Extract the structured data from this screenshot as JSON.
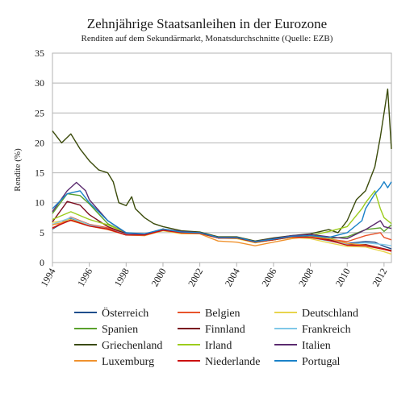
{
  "chart_data": {
    "type": "line",
    "title": "Zehnjährige Staatsanleihen in der Eurozone",
    "subtitle": "Renditen auf dem Sekundärmarkt, Monatsdurchschnitte (Quelle: EZB)",
    "xlabel": "",
    "ylabel": "Rendite (%)",
    "xlim": [
      1994,
      2012.4
    ],
    "ylim": [
      0,
      35
    ],
    "y_ticks": [
      0,
      5,
      10,
      15,
      20,
      25,
      30,
      35
    ],
    "x_ticks": [
      1994,
      1996,
      1998,
      2000,
      2002,
      2004,
      2006,
      2008,
      2010,
      2012
    ],
    "grid": "horizontal",
    "legend_position": "bottom",
    "series": [
      {
        "name": "Österreich",
        "color": "#1f4e8c",
        "points": [
          [
            1994,
            5.6
          ],
          [
            1995,
            7.4
          ],
          [
            1996,
            6.3
          ],
          [
            1997,
            5.7
          ],
          [
            1998,
            4.8
          ],
          [
            1999,
            4.6
          ],
          [
            2000,
            5.5
          ],
          [
            2001,
            5.1
          ],
          [
            2002,
            5.0
          ],
          [
            2003,
            4.2
          ],
          [
            2004,
            4.2
          ],
          [
            2005,
            3.4
          ],
          [
            2006,
            3.8
          ],
          [
            2007,
            4.3
          ],
          [
            2008,
            4.3
          ],
          [
            2009,
            3.9
          ],
          [
            2010,
            3.2
          ],
          [
            2011,
            3.5
          ],
          [
            2011.5,
            3.4
          ],
          [
            2012,
            2.7
          ],
          [
            2012.4,
            2.3
          ]
        ]
      },
      {
        "name": "Belgien",
        "color": "#e8542b",
        "points": [
          [
            1994,
            5.7
          ],
          [
            1995,
            7.6
          ],
          [
            1996,
            6.4
          ],
          [
            1997,
            5.8
          ],
          [
            1998,
            4.8
          ],
          [
            1999,
            4.7
          ],
          [
            2000,
            5.6
          ],
          [
            2001,
            5.1
          ],
          [
            2002,
            5.0
          ],
          [
            2003,
            4.2
          ],
          [
            2004,
            4.2
          ],
          [
            2005,
            3.4
          ],
          [
            2006,
            3.8
          ],
          [
            2007,
            4.3
          ],
          [
            2008,
            4.4
          ],
          [
            2009,
            3.9
          ],
          [
            2010,
            3.5
          ],
          [
            2011,
            4.5
          ],
          [
            2011.8,
            5.0
          ],
          [
            2012,
            4.2
          ],
          [
            2012.4,
            3.8
          ]
        ]
      },
      {
        "name": "Deutschland",
        "color": "#e8d44d",
        "points": [
          [
            1994,
            6.7
          ],
          [
            1995,
            7.2
          ],
          [
            1996,
            6.2
          ],
          [
            1997,
            5.6
          ],
          [
            1998,
            4.6
          ],
          [
            1999,
            4.5
          ],
          [
            2000,
            5.3
          ],
          [
            2001,
            4.8
          ],
          [
            2002,
            4.8
          ],
          [
            2003,
            4.1
          ],
          [
            2004,
            4.0
          ],
          [
            2005,
            3.3
          ],
          [
            2006,
            3.8
          ],
          [
            2007,
            4.2
          ],
          [
            2008,
            4.0
          ],
          [
            2009,
            3.3
          ],
          [
            2010,
            2.7
          ],
          [
            2011,
            2.6
          ],
          [
            2012,
            1.8
          ],
          [
            2012.4,
            1.4
          ]
        ]
      },
      {
        "name": "Spanien",
        "color": "#5aa02c",
        "points": [
          [
            1994,
            8.2
          ],
          [
            1994.8,
            11.5
          ],
          [
            1995.5,
            11.2
          ],
          [
            1996,
            9.8
          ],
          [
            1997,
            6.5
          ],
          [
            1998,
            4.9
          ],
          [
            1999,
            4.7
          ],
          [
            2000,
            5.6
          ],
          [
            2001,
            5.1
          ],
          [
            2002,
            5.0
          ],
          [
            2003,
            4.1
          ],
          [
            2004,
            4.1
          ],
          [
            2005,
            3.4
          ],
          [
            2006,
            3.8
          ],
          [
            2007,
            4.3
          ],
          [
            2008,
            4.4
          ],
          [
            2009,
            4.0
          ],
          [
            2010,
            4.3
          ],
          [
            2011,
            5.5
          ],
          [
            2011.8,
            5.8
          ],
          [
            2012,
            5.2
          ],
          [
            2012.4,
            6.3
          ]
        ]
      },
      {
        "name": "Finnland",
        "color": "#7a0c1e",
        "points": [
          [
            1994,
            6.8
          ],
          [
            1994.8,
            10.2
          ],
          [
            1995.5,
            9.6
          ],
          [
            1996,
            8.0
          ],
          [
            1997,
            6.0
          ],
          [
            1998,
            4.8
          ],
          [
            1999,
            4.7
          ],
          [
            2000,
            5.5
          ],
          [
            2001,
            5.1
          ],
          [
            2002,
            5.0
          ],
          [
            2003,
            4.1
          ],
          [
            2004,
            4.1
          ],
          [
            2005,
            3.4
          ],
          [
            2006,
            3.8
          ],
          [
            2007,
            4.3
          ],
          [
            2008,
            4.3
          ],
          [
            2009,
            3.8
          ],
          [
            2010,
            3.0
          ],
          [
            2011,
            3.0
          ],
          [
            2012,
            2.3
          ],
          [
            2012.4,
            2.0
          ]
        ]
      },
      {
        "name": "Frankreich",
        "color": "#7fc8e8",
        "points": [
          [
            1994,
            6.4
          ],
          [
            1995,
            7.5
          ],
          [
            1996,
            6.3
          ],
          [
            1997,
            5.6
          ],
          [
            1998,
            4.7
          ],
          [
            1999,
            4.6
          ],
          [
            2000,
            5.4
          ],
          [
            2001,
            5.0
          ],
          [
            2002,
            4.9
          ],
          [
            2003,
            4.1
          ],
          [
            2004,
            4.1
          ],
          [
            2005,
            3.4
          ],
          [
            2006,
            3.8
          ],
          [
            2007,
            4.3
          ],
          [
            2008,
            4.2
          ],
          [
            2009,
            3.6
          ],
          [
            2010,
            3.1
          ],
          [
            2011,
            3.3
          ],
          [
            2012,
            3.0
          ],
          [
            2012.4,
            2.8
          ]
        ]
      },
      {
        "name": "Griechenland",
        "color": "#3a4a0a",
        "points": [
          [
            1994,
            22.0
          ],
          [
            1994.5,
            20.0
          ],
          [
            1995,
            21.5
          ],
          [
            1995.5,
            19.0
          ],
          [
            1996,
            17.0
          ],
          [
            1996.5,
            15.5
          ],
          [
            1997,
            15.0
          ],
          [
            1997.3,
            13.5
          ],
          [
            1997.6,
            10.0
          ],
          [
            1998,
            9.5
          ],
          [
            1998.3,
            11.0
          ],
          [
            1998.5,
            9.0
          ],
          [
            1999,
            7.5
          ],
          [
            1999.5,
            6.5
          ],
          [
            2000,
            6.0
          ],
          [
            2001,
            5.3
          ],
          [
            2002,
            5.1
          ],
          [
            2003,
            4.3
          ],
          [
            2004,
            4.3
          ],
          [
            2005,
            3.6
          ],
          [
            2006,
            4.1
          ],
          [
            2007,
            4.5
          ],
          [
            2008,
            4.8
          ],
          [
            2009,
            5.5
          ],
          [
            2009.5,
            5.0
          ],
          [
            2010,
            7.0
          ],
          [
            2010.5,
            10.5
          ],
          [
            2011,
            12.0
          ],
          [
            2011.5,
            16.0
          ],
          [
            2011.8,
            21.0
          ],
          [
            2012,
            25.0
          ],
          [
            2012.2,
            29.0
          ],
          [
            2012.4,
            19.0
          ]
        ]
      },
      {
        "name": "Irland",
        "color": "#9ccc1c",
        "points": [
          [
            1994,
            7.2
          ],
          [
            1995,
            8.5
          ],
          [
            1996,
            7.2
          ],
          [
            1997,
            6.3
          ],
          [
            1998,
            5.0
          ],
          [
            1999,
            4.7
          ],
          [
            2000,
            5.5
          ],
          [
            2001,
            5.0
          ],
          [
            2002,
            5.0
          ],
          [
            2003,
            4.1
          ],
          [
            2004,
            4.1
          ],
          [
            2005,
            3.4
          ],
          [
            2006,
            3.8
          ],
          [
            2007,
            4.3
          ],
          [
            2008,
            4.5
          ],
          [
            2009,
            5.2
          ],
          [
            2010,
            6.0
          ],
          [
            2010.8,
            9.0
          ],
          [
            2011,
            10.0
          ],
          [
            2011.5,
            12.0
          ],
          [
            2011.8,
            9.0
          ],
          [
            2012,
            7.5
          ],
          [
            2012.4,
            6.5
          ]
        ]
      },
      {
        "name": "Italien",
        "color": "#5a2a6e",
        "points": [
          [
            1994,
            8.5
          ],
          [
            1994.8,
            12.0
          ],
          [
            1995.3,
            13.4
          ],
          [
            1995.8,
            12.0
          ],
          [
            1996,
            10.5
          ],
          [
            1997,
            7.0
          ],
          [
            1998,
            4.9
          ],
          [
            1999,
            4.7
          ],
          [
            2000,
            5.6
          ],
          [
            2001,
            5.2
          ],
          [
            2002,
            5.0
          ],
          [
            2003,
            4.2
          ],
          [
            2004,
            4.2
          ],
          [
            2005,
            3.5
          ],
          [
            2006,
            4.0
          ],
          [
            2007,
            4.5
          ],
          [
            2008,
            4.7
          ],
          [
            2009,
            4.3
          ],
          [
            2010,
            4.0
          ],
          [
            2011,
            5.5
          ],
          [
            2011.8,
            7.0
          ],
          [
            2012,
            6.0
          ],
          [
            2012.4,
            5.7
          ]
        ]
      },
      {
        "name": "Luxemburg",
        "color": "#f0922e",
        "points": [
          [
            1994,
            6.3
          ],
          [
            1995,
            7.0
          ],
          [
            1996,
            6.1
          ],
          [
            1997,
            5.5
          ],
          [
            1998,
            4.6
          ],
          [
            1999,
            4.5
          ],
          [
            2000,
            5.4
          ],
          [
            2001,
            4.9
          ],
          [
            2002,
            4.8
          ],
          [
            2003,
            3.6
          ],
          [
            2004,
            3.4
          ],
          [
            2005,
            2.8
          ],
          [
            2006,
            3.4
          ],
          [
            2007,
            4.0
          ],
          [
            2008,
            4.3
          ],
          [
            2009,
            4.0
          ],
          [
            2010,
            3.2
          ],
          [
            2011,
            2.9
          ],
          [
            2012,
            2.2
          ],
          [
            2012.4,
            1.9
          ]
        ]
      },
      {
        "name": "Niederlande",
        "color": "#cc1010",
        "points": [
          [
            1994,
            5.8
          ],
          [
            1995,
            7.1
          ],
          [
            1996,
            6.1
          ],
          [
            1997,
            5.6
          ],
          [
            1998,
            4.6
          ],
          [
            1999,
            4.6
          ],
          [
            2000,
            5.4
          ],
          [
            2001,
            5.0
          ],
          [
            2002,
            4.9
          ],
          [
            2003,
            4.1
          ],
          [
            2004,
            4.1
          ],
          [
            2005,
            3.4
          ],
          [
            2006,
            3.8
          ],
          [
            2007,
            4.3
          ],
          [
            2008,
            4.2
          ],
          [
            2009,
            3.7
          ],
          [
            2010,
            2.9
          ],
          [
            2011,
            2.8
          ],
          [
            2012,
            2.2
          ],
          [
            2012.4,
            1.9
          ]
        ]
      },
      {
        "name": "Portugal",
        "color": "#1a82c8",
        "points": [
          [
            1994,
            9.0
          ],
          [
            1994.8,
            11.5
          ],
          [
            1995.5,
            12.0
          ],
          [
            1996,
            10.0
          ],
          [
            1997,
            7.0
          ],
          [
            1998,
            5.0
          ],
          [
            1999,
            4.8
          ],
          [
            2000,
            5.6
          ],
          [
            2001,
            5.1
          ],
          [
            2002,
            5.0
          ],
          [
            2003,
            4.2
          ],
          [
            2004,
            4.2
          ],
          [
            2005,
            3.5
          ],
          [
            2006,
            3.9
          ],
          [
            2007,
            4.4
          ],
          [
            2008,
            4.5
          ],
          [
            2009,
            4.2
          ],
          [
            2010,
            5.0
          ],
          [
            2010.8,
            7.0
          ],
          [
            2011,
            9.0
          ],
          [
            2011.5,
            11.5
          ],
          [
            2011.8,
            12.5
          ],
          [
            2012,
            13.5
          ],
          [
            2012.2,
            12.5
          ],
          [
            2012.4,
            13.5
          ]
        ]
      }
    ]
  }
}
